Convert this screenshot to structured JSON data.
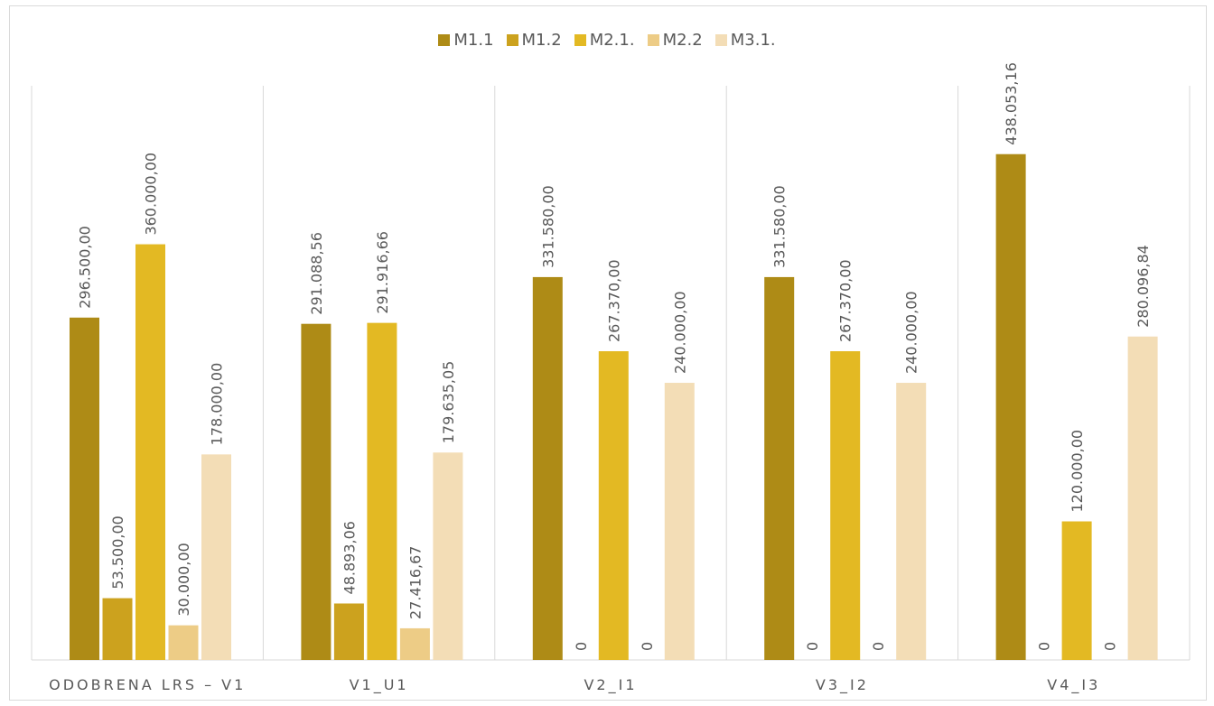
{
  "chart_data": {
    "type": "bar",
    "title": "",
    "xlabel": "",
    "ylabel": "",
    "legend_position": "top",
    "grid": "vertical category separators",
    "ylim": [
      0,
      480000
    ],
    "categories": [
      "ODOBRENA LRS – V1",
      "V1_U1",
      "V2_I1",
      "V3_I2",
      "V4_I3"
    ],
    "series": [
      {
        "name": "M1.1",
        "color": "#AE8B16",
        "values": [
          296500.0,
          291088.56,
          331580.0,
          331580.0,
          438053.16
        ],
        "labels": [
          "296.500,00",
          "291.088,56",
          "331.580,00",
          "331.580,00",
          "438.053,16"
        ]
      },
      {
        "name": "M1.2",
        "color": "#CCA21E",
        "values": [
          53500.0,
          48893.06,
          0,
          0,
          0
        ],
        "labels": [
          "53.500,00",
          "48.893,06",
          "0",
          "0",
          "0"
        ]
      },
      {
        "name": "M2.1.",
        "color": "#E3B923",
        "values": [
          360000.0,
          291916.66,
          267370.0,
          267370.0,
          120000.0
        ],
        "labels": [
          "360.000,00",
          "291.916,66",
          "267.370,00",
          "267.370,00",
          "120.000,00"
        ]
      },
      {
        "name": "M2.2",
        "color": "#EDCC86",
        "values": [
          30000.0,
          27416.67,
          0,
          0,
          0
        ],
        "labels": [
          "30.000,00",
          "27.416,67",
          "0",
          "0",
          "0"
        ]
      },
      {
        "name": "M3.1.",
        "color": "#F3DDB6",
        "values": [
          178000.0,
          179635.05,
          240000.0,
          240000.0,
          280096.84
        ],
        "labels": [
          "178.000,00",
          "179.635,05",
          "240.000,00",
          "240.000,00",
          "280.096,84"
        ]
      }
    ]
  }
}
